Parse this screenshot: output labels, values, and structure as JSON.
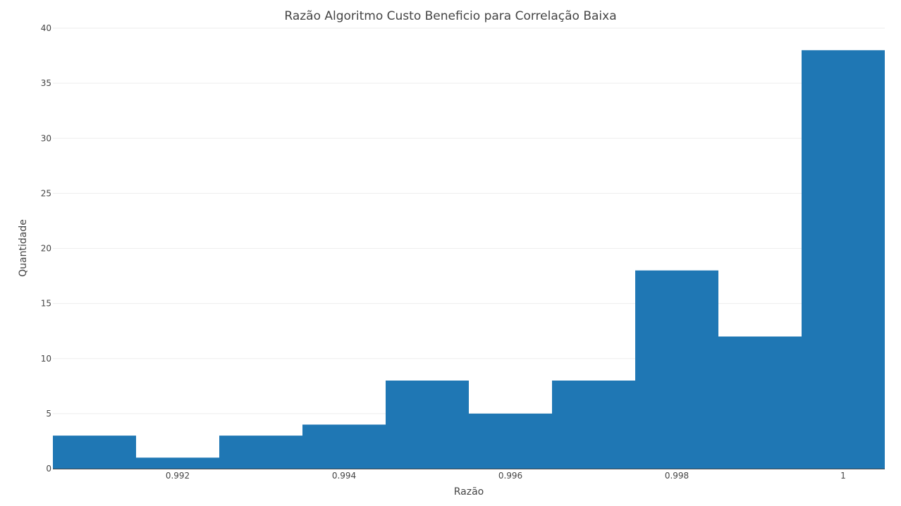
{
  "chart_data": {
    "type": "bar",
    "title": "Razão Algoritmo Custo Beneficio para Correlação Baixa",
    "xlabel": "Razão",
    "ylabel": "Quantidade",
    "bin_width": 0.001,
    "bins": [
      {
        "center": 0.991,
        "value": 3
      },
      {
        "center": 0.992,
        "value": 1
      },
      {
        "center": 0.993,
        "value": 3
      },
      {
        "center": 0.994,
        "value": 4
      },
      {
        "center": 0.995,
        "value": 8
      },
      {
        "center": 0.996,
        "value": 5
      },
      {
        "center": 0.997,
        "value": 8
      },
      {
        "center": 0.998,
        "value": 18
      },
      {
        "center": 0.999,
        "value": 12
      },
      {
        "center": 1.0,
        "value": 38
      }
    ],
    "xlim": [
      0.9905,
      1.0005
    ],
    "ylim": [
      0,
      40
    ],
    "x_ticks": [
      0.992,
      0.994,
      0.996,
      0.998,
      1
    ],
    "x_tick_labels": [
      "0.992",
      "0.994",
      "0.996",
      "0.998",
      "1"
    ],
    "y_ticks": [
      0,
      5,
      10,
      15,
      20,
      25,
      30,
      35,
      40
    ],
    "y_tick_labels": [
      "0",
      "5",
      "10",
      "15",
      "20",
      "25",
      "30",
      "35",
      "40"
    ],
    "grid": true,
    "bar_color": "#1f77b4"
  }
}
